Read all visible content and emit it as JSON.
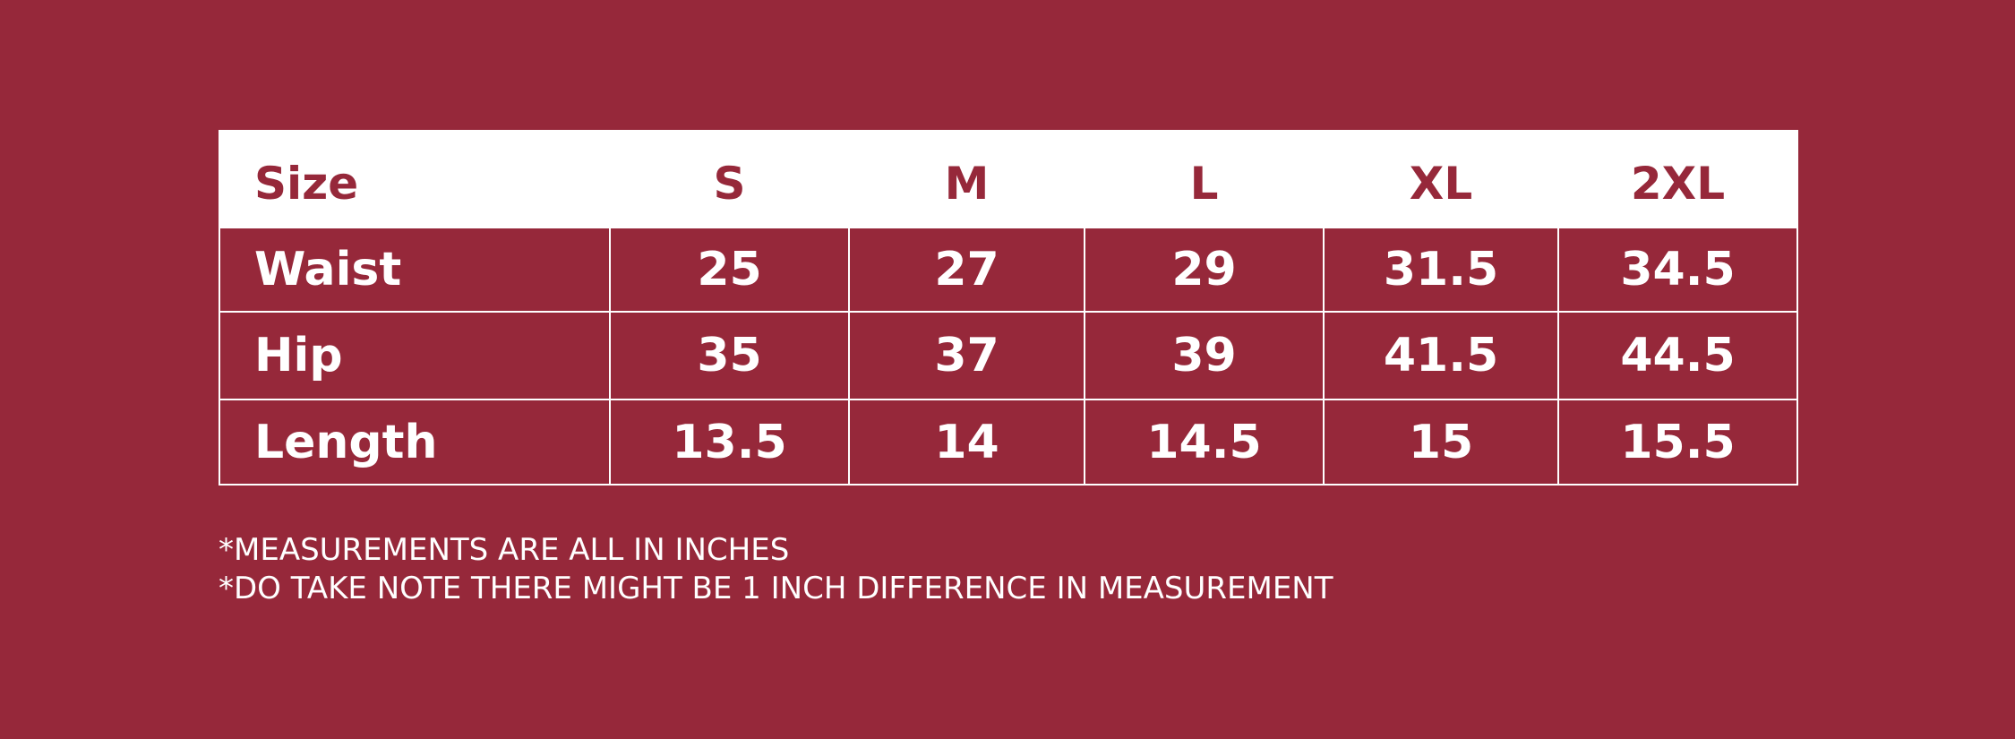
{
  "table": {
    "header": [
      "Size",
      "S",
      "M",
      "L",
      "XL",
      "2XL"
    ],
    "rows": [
      {
        "label": "Waist",
        "values": [
          25,
          27,
          29,
          31.5,
          34.5
        ]
      },
      {
        "label": "Hip",
        "values": [
          35,
          37,
          39,
          41.5,
          44.5
        ]
      },
      {
        "label": "Length",
        "values": [
          13.5,
          14,
          14.5,
          15,
          15.5
        ]
      }
    ]
  },
  "notes": [
    "*MEASUREMENTS ARE ALL IN INCHES",
    "*DO TAKE NOTE THERE MIGHT BE 1 INCH DIFFERENCE IN MEASUREMENT"
  ]
}
